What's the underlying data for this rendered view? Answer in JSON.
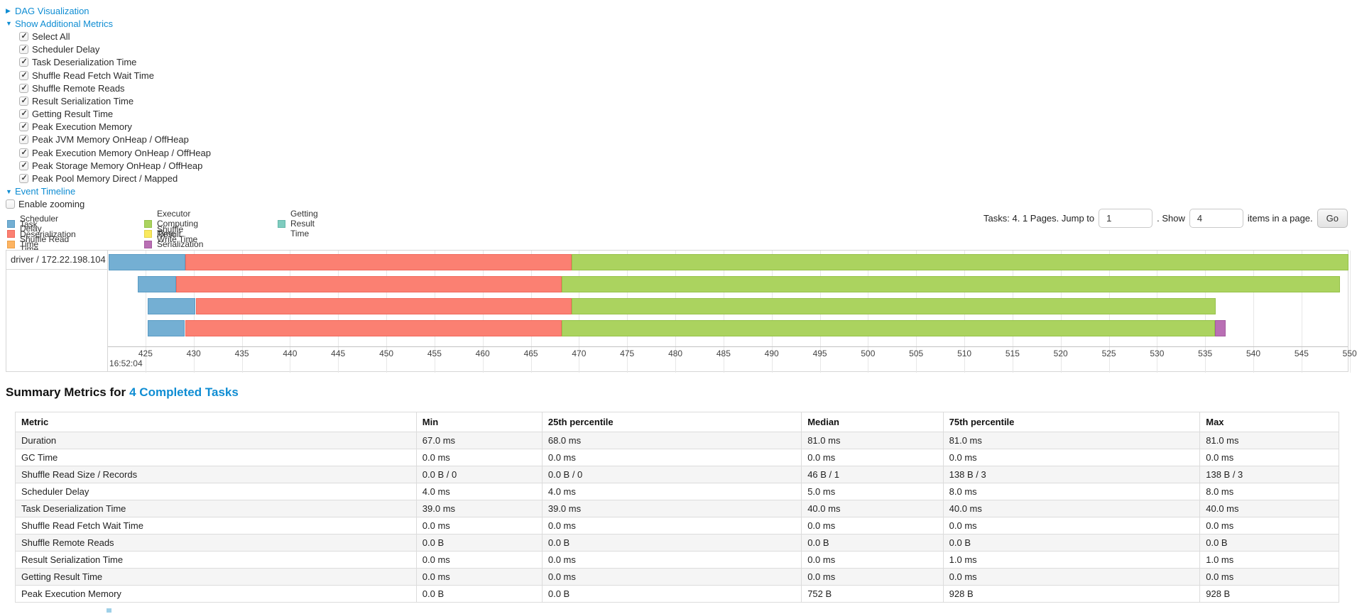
{
  "controls": {
    "dag_label": "DAG Visualization",
    "metrics_label": "Show Additional Metrics",
    "metric_checkboxes": [
      "Select All",
      "Scheduler Delay",
      "Task Deserialization Time",
      "Shuffle Read Fetch Wait Time",
      "Shuffle Remote Reads",
      "Result Serialization Time",
      "Getting Result Time",
      "Peak Execution Memory",
      "Peak JVM Memory OnHeap / OffHeap",
      "Peak Execution Memory OnHeap / OffHeap",
      "Peak Storage Memory OnHeap / OffHeap",
      "Peak Pool Memory Direct / Mapped"
    ],
    "metric_checkboxes_checked": true,
    "event_timeline_label": "Event Timeline",
    "enable_zooming_label": "Enable zooming",
    "enable_zooming_checked": false,
    "link_color": "#0f8dd3"
  },
  "legend": {
    "columns": [
      [
        {
          "label": "Scheduler Delay",
          "metric": "scheduler-delay"
        },
        {
          "label": "Task Deserialization Time",
          "metric": "task-deserialization-time"
        },
        {
          "label": "Shuffle Read Time",
          "metric": "shuffle-read-time"
        }
      ],
      [
        {
          "label": "Executor Computing Time",
          "metric": "executor-computing-time"
        },
        {
          "label": "Shuffle Write Time",
          "metric": "shuffle-write-time"
        },
        {
          "label": "Result Serialization Time",
          "metric": "result-serialization-time"
        }
      ],
      [
        {
          "label": "Getting Result Time",
          "metric": "getting-result-time"
        }
      ]
    ]
  },
  "pagination": {
    "prefix": "Tasks: 4. 1 Pages. Jump to",
    "jump_value": "1",
    "mid": ". Show",
    "show_value": "4",
    "suffix": "items in a page.",
    "go_label": "Go"
  },
  "chart_data": {
    "type": "timeline",
    "group": "driver / 172.22.198.104",
    "axis": {
      "domain": [
        421.1,
        549.8
      ],
      "tick_start": 425,
      "tick_step": 5,
      "tick_end": 550,
      "base_tick": 425,
      "base_tick_label": "16:52:04"
    },
    "colors": {
      "scheduler-delay": "#74AFD3",
      "scheduler-delay-border": "#5A9BC4",
      "task-deserialization-time": "#FB8072",
      "task-deserialization-time-border": "#F0695C",
      "shuffle-read-time": "#FDB462",
      "shuffle-read-time-border": "#EC9F47",
      "executor-computing-time": "#ABD35F",
      "executor-computing-time-border": "#96C24A",
      "shuffle-write-time": "#F9E95E",
      "shuffle-write-time-border": "#E3D348",
      "result-serialization-time": "#B96FB4",
      "result-serialization-time-border": "#A45C9F",
      "getting-result-time": "#7FCCBF",
      "getting-result-time-border": "#65B7AA"
    },
    "tasks": [
      {
        "segments": [
          {
            "metric": "scheduler-delay",
            "start": 421.2,
            "end": 429.1
          },
          {
            "metric": "task-deserialization-time",
            "start": 429.1,
            "end": 469.2
          },
          {
            "metric": "executor-computing-time",
            "start": 469.2,
            "end": 549.9
          }
        ]
      },
      {
        "segments": [
          {
            "metric": "scheduler-delay",
            "start": 424.2,
            "end": 428.2
          },
          {
            "metric": "task-deserialization-time",
            "start": 428.2,
            "end": 468.2
          },
          {
            "metric": "executor-computing-time",
            "start": 468.2,
            "end": 549.0
          }
        ]
      },
      {
        "segments": [
          {
            "metric": "scheduler-delay",
            "start": 425.2,
            "end": 430.2
          },
          {
            "metric": "task-deserialization-time",
            "start": 430.2,
            "end": 469.2
          },
          {
            "metric": "executor-computing-time",
            "start": 469.2,
            "end": 536.1
          }
        ]
      },
      {
        "segments": [
          {
            "metric": "scheduler-delay",
            "start": 425.2,
            "end": 429.1
          },
          {
            "metric": "task-deserialization-time",
            "start": 429.1,
            "end": 468.2
          },
          {
            "metric": "executor-computing-time",
            "start": 468.2,
            "end": 536.0
          },
          {
            "metric": "result-serialization-time",
            "start": 536.0,
            "end": 537.1
          }
        ]
      }
    ]
  },
  "summary": {
    "title_prefix": "Summary Metrics for",
    "title_link": "4 Completed Tasks",
    "table": {
      "headers": [
        "Metric",
        "Min",
        "25th percentile",
        "Median",
        "75th percentile",
        "Max"
      ],
      "rows": [
        [
          "Duration",
          "67.0 ms",
          "68.0 ms",
          "81.0 ms",
          "81.0 ms",
          "81.0 ms"
        ],
        [
          "GC Time",
          "0.0 ms",
          "0.0 ms",
          "0.0 ms",
          "0.0 ms",
          "0.0 ms"
        ],
        [
          "Shuffle Read Size / Records",
          "0.0 B / 0",
          "0.0 B / 0",
          "46 B / 1",
          "138 B / 3",
          "138 B / 3"
        ],
        [
          "Scheduler Delay",
          "4.0 ms",
          "4.0 ms",
          "5.0 ms",
          "8.0 ms",
          "8.0 ms"
        ],
        [
          "Task Deserialization Time",
          "39.0 ms",
          "39.0 ms",
          "40.0 ms",
          "40.0 ms",
          "40.0 ms"
        ],
        [
          "Shuffle Read Fetch Wait Time",
          "0.0 ms",
          "0.0 ms",
          "0.0 ms",
          "0.0 ms",
          "0.0 ms"
        ],
        [
          "Shuffle Remote Reads",
          "0.0 B",
          "0.0 B",
          "0.0 B",
          "0.0 B",
          "0.0 B"
        ],
        [
          "Result Serialization Time",
          "0.0 ms",
          "0.0 ms",
          "0.0 ms",
          "1.0 ms",
          "1.0 ms"
        ],
        [
          "Getting Result Time",
          "0.0 ms",
          "0.0 ms",
          "0.0 ms",
          "0.0 ms",
          "0.0 ms"
        ],
        [
          "Peak Execution Memory",
          "0.0 B",
          "0.0 B",
          "752 B",
          "928 B",
          "928 B"
        ]
      ]
    }
  }
}
